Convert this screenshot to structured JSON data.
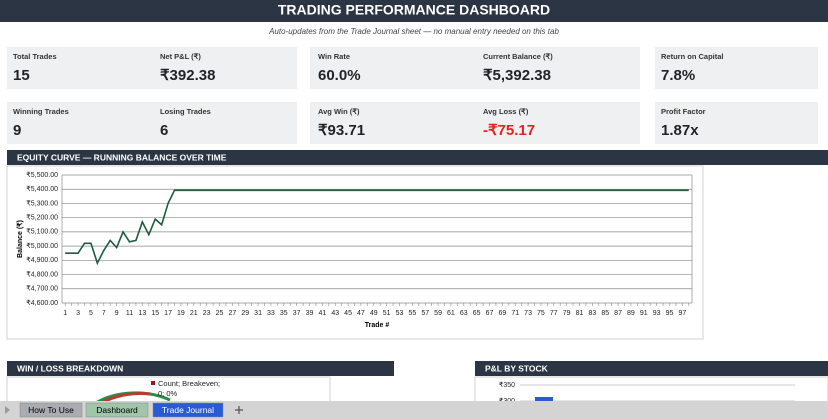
{
  "header": {
    "title": "TRADING PERFORMANCE DASHBOARD",
    "subtitle": "Auto-updates from the Trade Journal sheet — no manual entry needed on this tab"
  },
  "kpi_rows": [
    [
      {
        "label": "Total Trades",
        "value": "15"
      },
      {
        "label": "Net P&L (₹)",
        "value": "₹392.38"
      },
      {
        "label": "Win Rate",
        "value": "60.0%"
      },
      {
        "label": "Current Balance (₹)",
        "value": "₹5,392.38"
      },
      {
        "label": "Return on Capital",
        "value": "7.8%"
      }
    ],
    [
      {
        "label": "Winning Trades",
        "value": "9"
      },
      {
        "label": "Losing Trades",
        "value": "6"
      },
      {
        "label": "Avg Win (₹)",
        "value": "₹93.71"
      },
      {
        "label": "Avg Loss (₹)",
        "value": "-₹75.17",
        "color": "#e8201c"
      },
      {
        "label": "Profit Factor",
        "value": "1.87x"
      }
    ]
  ],
  "chart_data": {
    "type": "line",
    "section_title": "EQUITY CURVE — RUNNING BALANCE OVER TIME",
    "x_label": "Trade #",
    "y_label": "Balance (₹)",
    "color": "#1e5e3e",
    "grid": true,
    "categories": [
      1,
      null,
      3,
      null,
      5,
      null,
      7,
      null,
      9,
      null,
      11,
      null,
      13,
      null,
      15,
      null,
      17,
      null,
      19,
      null,
      21,
      null,
      23,
      null,
      25,
      null,
      27,
      null,
      29,
      null,
      31,
      null,
      33,
      null,
      35,
      null,
      37,
      null,
      39,
      null,
      41,
      null,
      43,
      null,
      45,
      null,
      47,
      null,
      49,
      null,
      51,
      null,
      53,
      null,
      55,
      null,
      57,
      null,
      59,
      null,
      61,
      null,
      63,
      null,
      65,
      null,
      67,
      null,
      69,
      null,
      71,
      null,
      73,
      null,
      75,
      null,
      77,
      null,
      79,
      null,
      81,
      null,
      83,
      null,
      85,
      null,
      87,
      null,
      89,
      null,
      91,
      null,
      93,
      null,
      95,
      null,
      97,
      null
    ],
    "values": [
      4950,
      4950,
      4950,
      5020,
      5020,
      4880,
      4970,
      5040,
      4990,
      5100,
      5030,
      5040,
      5170,
      5080,
      5190,
      5150,
      5300,
      5392.38,
      5392.38,
      5392.38,
      5392.38,
      5392.38,
      5392.38,
      5392.38,
      5392.38,
      5392.38,
      5392.38,
      5392.38,
      5392.38,
      5392.38,
      5392.38,
      5392.38,
      5392.38,
      5392.38,
      5392.38,
      5392.38,
      5392.38,
      5392.38,
      5392.38,
      5392.38,
      5392.38,
      5392.38,
      5392.38,
      5392.38,
      5392.38,
      5392.38,
      5392.38,
      5392.38,
      5392.38,
      5392.38,
      5392.38,
      5392.38,
      5392.38,
      5392.38,
      5392.38,
      5392.38,
      5392.38,
      5392.38,
      5392.38,
      5392.38,
      5392.38,
      5392.38,
      5392.38,
      5392.38,
      5392.38,
      5392.38,
      5392.38,
      5392.38,
      5392.38,
      5392.38,
      5392.38,
      5392.38,
      5392.38,
      5392.38,
      5392.38,
      5392.38,
      5392.38,
      5392.38,
      5392.38,
      5392.38,
      5392.38,
      5392.38,
      5392.38,
      5392.38,
      5392.38,
      5392.38,
      5392.38,
      5392.38,
      5392.38,
      5392.38,
      5392.38,
      5392.38,
      5392.38,
      5392.38,
      5392.38,
      5392.38,
      5392.38,
      5392.38
    ],
    "ylim": [
      4600,
      5500
    ],
    "yticks": [
      {
        "value": 4600,
        "label": "₹4,600.00"
      },
      {
        "value": 4700,
        "label": "₹4,700.00"
      },
      {
        "value": 4800,
        "label": "₹4,800.00"
      },
      {
        "value": 4900,
        "label": "₹4,900.00"
      },
      {
        "value": 5000,
        "label": "₹5,000.00"
      },
      {
        "value": 5100,
        "label": "₹5,100.00"
      },
      {
        "value": 5200,
        "label": "₹5,200.00"
      },
      {
        "value": 5300,
        "label": "₹5,300.00"
      },
      {
        "value": 5400,
        "label": "₹5,400.00"
      },
      {
        "value": 5500,
        "label": "₹5,500.00"
      }
    ]
  },
  "win_loss": {
    "section_title": "WIN / LOSS BREAKDOWN",
    "legend_lines": [
      "Count; Breakeven;",
      "0; 0%"
    ]
  },
  "pnl_by_stock": {
    "section_title": "P&L BY STOCK",
    "tick_labels": [
      "₹350",
      "₹300"
    ]
  },
  "sheet_tabs": [
    "How To Use",
    "Dashboard",
    "Trade Journal"
  ]
}
